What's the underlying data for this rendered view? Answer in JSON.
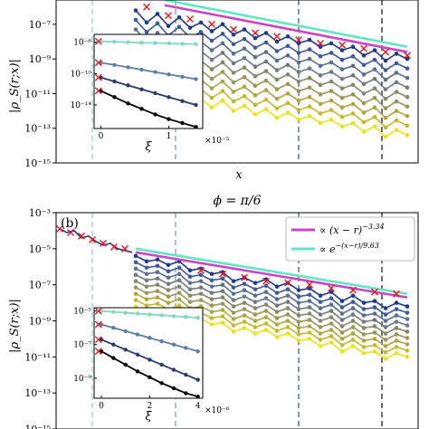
{
  "chart_data": [
    {
      "id": "panel-a",
      "type": "line",
      "panel_label": "",
      "title": "",
      "xlabel": "x",
      "ylabel": "|ρ_S(r;x)|",
      "y_scale": "log",
      "y_ticks": [
        "10⁻⁷",
        "10⁻⁹",
        "10⁻¹¹",
        "10⁻¹³",
        "10⁻¹⁵"
      ],
      "ylim_exp": [
        -15,
        -5.6
      ],
      "xlim": [
        0,
        100
      ],
      "vlines_x": [
        10,
        33,
        67,
        90
      ],
      "vline_colors": [
        "#a8d8dc",
        "#8fb3c4",
        "#5f7f96",
        "#3f4f60"
      ],
      "fits": [
        {
          "color": "#cc44cc",
          "x": [
            30,
            97
          ],
          "y_exp": [
            -5.9,
            -8.6
          ]
        },
        {
          "color": "#5fe6c4",
          "x": [
            30,
            97
          ],
          "y_exp": [
            -5.6,
            -8.3
          ]
        }
      ],
      "series_colors": [
        "#1e3a8a",
        "#3f5a9a",
        "#5b6f90",
        "#707a7e",
        "#86886a",
        "#9a9656",
        "#aeA63f",
        "#c6b82c",
        "#e8e21a"
      ],
      "series_offset_exp": [
        0,
        -0.55,
        -1.1,
        -1.65,
        -2.2,
        -2.75,
        -3.3,
        -3.85,
        -4.4
      ],
      "base": {
        "x": [
          22,
          25,
          28,
          31,
          34,
          37,
          40,
          43,
          46,
          49,
          52,
          55,
          58,
          61,
          64,
          67,
          70,
          73,
          76,
          79,
          82,
          85,
          88,
          91,
          94,
          97
        ],
        "y_exp": [
          -6.2,
          -6.9,
          -6.4,
          -7.1,
          -6.6,
          -7.2,
          -6.9,
          -7.4,
          -7.0,
          -7.6,
          -7.3,
          -7.8,
          -7.5,
          -8.0,
          -7.7,
          -8.1,
          -7.9,
          -8.3,
          -8.1,
          -8.5,
          -8.3,
          -8.8,
          -8.5,
          -9.1,
          -8.7,
          -9.0
        ]
      },
      "crosses": {
        "x": [
          25,
          31,
          37,
          43,
          49,
          55,
          61,
          67,
          73,
          79,
          85,
          91,
          97
        ],
        "y_exp": [
          -6.0,
          -6.5,
          -6.7,
          -7.0,
          -7.3,
          -7.5,
          -7.7,
          -7.9,
          -8.1,
          -8.2,
          -8.4,
          -8.6,
          -8.8
        ]
      },
      "inset": {
        "ylabel": "",
        "xlabel": "ξ",
        "x_ticks": [
          "0",
          "1"
        ],
        "x_multiplier": "×10⁻⁵",
        "y_ticks": [
          "10⁻⁶",
          "10⁻¹⁰",
          "10⁻¹⁴"
        ],
        "xlim": [
          -0.1,
          1.5
        ],
        "ylim_exp": [
          -17,
          -5
        ],
        "lines": [
          {
            "color": "#7fd8c0",
            "x": [
              0,
              0.2,
              0.4,
              0.6,
              0.8,
              1.0,
              1.2,
              1.4
            ],
            "y_exp": [
              -5.9,
              -5.95,
              -6.0,
              -6.05,
              -6.1,
              -6.15,
              -6.2,
              -6.25
            ]
          },
          {
            "color": "#5b7fa6",
            "x": [
              0,
              0.2,
              0.4,
              0.6,
              0.8,
              1.0,
              1.2,
              1.4
            ],
            "y_exp": [
              -8.6,
              -8.9,
              -9.2,
              -9.5,
              -9.8,
              -10.1,
              -10.4,
              -10.7
            ]
          },
          {
            "color": "#2a3a70",
            "x": [
              0,
              0.2,
              0.4,
              0.6,
              0.8,
              1.0,
              1.2,
              1.4
            ],
            "y_exp": [
              -10.5,
              -11.0,
              -11.5,
              -12.0,
              -12.5,
              -13.0,
              -13.5,
              -14.0
            ]
          },
          {
            "color": "#000000",
            "x": [
              0,
              0.2,
              0.4,
              0.6,
              0.8,
              1.0,
              1.2,
              1.4
            ],
            "y_exp": [
              -12.2,
              -13.0,
              -13.8,
              -14.5,
              -15.2,
              -15.8,
              -16.3,
              -16.8
            ]
          }
        ],
        "crosses_y_exp": [
          -5.9,
          -8.6,
          -10.5,
          -12.2
        ]
      }
    },
    {
      "id": "panel-b",
      "type": "line",
      "panel_label": "(b)",
      "title": "ϕ = π/6",
      "xlabel": "",
      "ylabel": "|ρ_S(r;x)|",
      "y_scale": "log",
      "y_ticks": [
        "10⁻³",
        "10⁻⁵",
        "10⁻⁷",
        "10⁻⁹",
        "10⁻¹¹",
        "10⁻¹³",
        "10⁻¹⁵"
      ],
      "ylim_exp": [
        -15,
        -3
      ],
      "xlim": [
        0,
        100
      ],
      "vlines_x": [
        10,
        33,
        67,
        90
      ],
      "vline_colors": [
        "#a8d8dc",
        "#8fb3c4",
        "#5f7f96",
        "#3f4f60"
      ],
      "legend": [
        {
          "color": "#cc44cc",
          "label": "∝ (x − r)",
          "exponent": "−3.34"
        },
        {
          "color": "#5fe6c4",
          "label": "∝ e",
          "exponent": "−(x−r)/9.63"
        }
      ],
      "fits": [
        {
          "color": "#cc44cc",
          "x": [
            22,
            97
          ],
          "y_exp": [
            -5.2,
            -7.7
          ]
        },
        {
          "color": "#5fe6c4",
          "x": [
            22,
            97
          ],
          "y_exp": [
            -5.0,
            -7.5
          ]
        }
      ],
      "series_colors": [
        "#1e3a8a",
        "#3f5a9a",
        "#5b6f90",
        "#707a7e",
        "#86886a",
        "#9a9656",
        "#aea63f",
        "#c6b82c",
        "#e8e21a"
      ],
      "series_offset_exp": [
        0,
        -0.35,
        -0.7,
        -1.05,
        -1.4,
        -1.75,
        -2.1,
        -2.45,
        -2.8
      ],
      "base": {
        "x": [
          22,
          25,
          28,
          31,
          34,
          37,
          40,
          43,
          46,
          49,
          52,
          55,
          58,
          61,
          64,
          67,
          70,
          73,
          76,
          79,
          82,
          85,
          88,
          91,
          94,
          97
        ],
        "y_exp": [
          -5.4,
          -5.7,
          -5.6,
          -5.9,
          -5.7,
          -6.2,
          -6.1,
          -6.4,
          -6.3,
          -6.8,
          -6.6,
          -6.9,
          -6.7,
          -7.1,
          -6.9,
          -7.3,
          -7.2,
          -7.6,
          -7.4,
          -7.9,
          -7.6,
          -8.0,
          -7.9,
          -8.3,
          -8.0,
          -8.2
        ]
      },
      "head": {
        "x": [
          1,
          3,
          5,
          7,
          9,
          11,
          13,
          15,
          17,
          19,
          21
        ],
        "y_exp": [
          -3.9,
          -4.1,
          -4.0,
          -4.4,
          -4.3,
          -4.6,
          -4.8,
          -4.7,
          -5.0,
          -5.1,
          -5.2
        ]
      },
      "crosses": {
        "x": [
          1,
          4,
          7,
          10,
          13,
          16,
          19,
          40,
          46,
          52,
          58,
          64,
          70,
          76,
          82,
          88,
          94
        ],
        "y_exp": [
          -3.9,
          -4.1,
          -4.3,
          -4.5,
          -4.7,
          -4.9,
          -5.0,
          -6.2,
          -6.4,
          -6.6,
          -6.8,
          -6.9,
          -7.0,
          -7.2,
          -7.3,
          -7.4,
          -7.5
        ]
      },
      "inset": {
        "ylabel": "",
        "xlabel": "ξ",
        "x_ticks": [
          "0",
          "2",
          "4"
        ],
        "x_multiplier": "×10⁻⁶",
        "y_ticks": [
          "10⁻⁵",
          "10⁻⁷",
          "10⁻⁹"
        ],
        "xlim": [
          -0.3,
          4.2
        ],
        "ylim_exp": [
          -10.2,
          -4.8
        ],
        "lines": [
          {
            "color": "#7fd8c0",
            "x": [
              0,
              0.5,
              1,
              1.5,
              2,
              2.5,
              3,
              3.5,
              4
            ],
            "y_exp": [
              -5.0,
              -5.05,
              -5.1,
              -5.15,
              -5.2,
              -5.25,
              -5.3,
              -5.35,
              -5.4
            ]
          },
          {
            "color": "#5b7fa6",
            "x": [
              0,
              0.5,
              1,
              1.5,
              2,
              2.5,
              3,
              3.5,
              4
            ],
            "y_exp": [
              -5.8,
              -6.0,
              -6.2,
              -6.4,
              -6.6,
              -6.8,
              -7.0,
              -7.2,
              -7.4
            ]
          },
          {
            "color": "#2a3a70",
            "x": [
              0,
              0.5,
              1,
              1.5,
              2,
              2.5,
              3,
              3.5,
              4
            ],
            "y_exp": [
              -6.7,
              -7.0,
              -7.3,
              -7.6,
              -7.9,
              -8.2,
              -8.5,
              -8.8,
              -9.1
            ]
          },
          {
            "color": "#000000",
            "x": [
              0,
              0.5,
              1,
              1.5,
              2,
              2.5,
              3,
              3.5,
              4
            ],
            "y_exp": [
              -7.4,
              -7.8,
              -8.2,
              -8.6,
              -8.95,
              -9.3,
              -9.6,
              -9.9,
              -10.1
            ]
          }
        ],
        "crosses_y_exp": [
          -5.0,
          -5.8,
          -6.7,
          -7.4
        ]
      }
    }
  ]
}
